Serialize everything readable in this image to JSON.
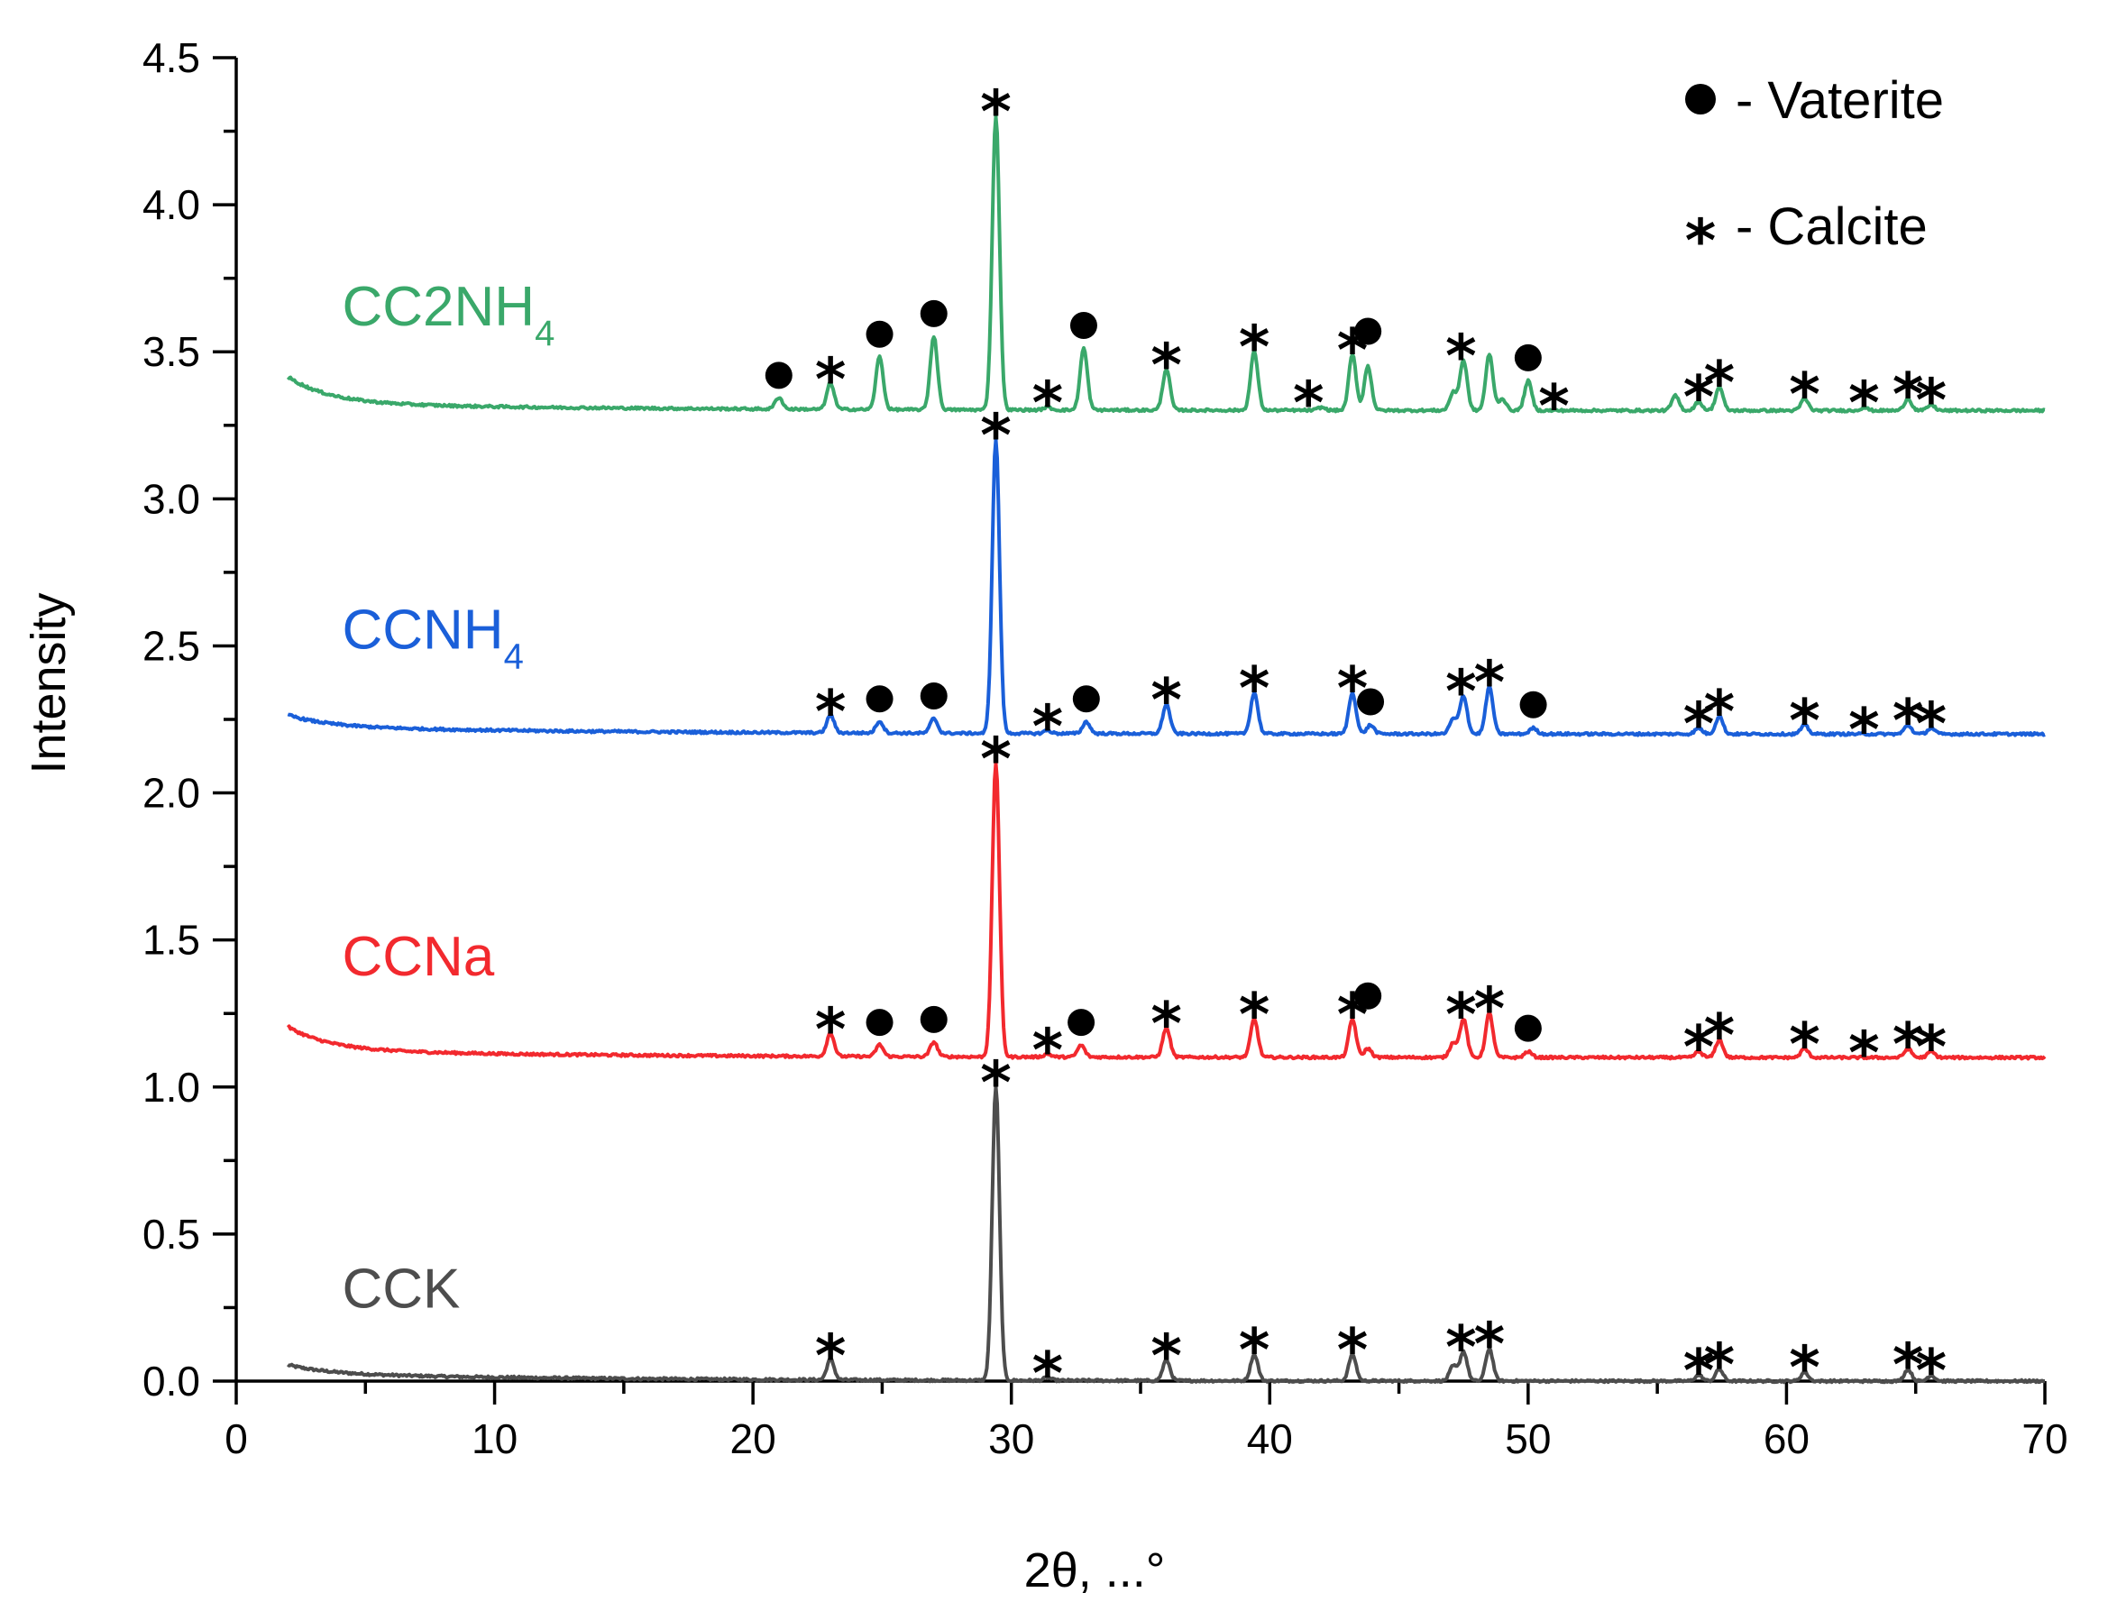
{
  "chart_data": {
    "type": "line",
    "xlabel": "2θ, ...°",
    "ylabel": "Intensity",
    "xlim": [
      0,
      70
    ],
    "ylim": [
      0,
      4.5
    ],
    "x_ticks": [
      0,
      10,
      20,
      30,
      40,
      50,
      60,
      70
    ],
    "x_tick_labels": [
      "0",
      "10",
      "20",
      "30",
      "40",
      "50",
      "60",
      "70"
    ],
    "y_ticks": [
      0.0,
      0.5,
      1.0,
      1.5,
      2.0,
      2.5,
      3.0,
      3.5,
      4.0,
      4.5
    ],
    "y_tick_labels": [
      "0.0",
      "0.5",
      "1.0",
      "1.5",
      "2.0",
      "2.5",
      "3.0",
      "3.5",
      "4.0",
      "4.5"
    ],
    "x_minor_step": 5,
    "y_minor_step": 0.25,
    "grid": false,
    "legend": {
      "placement": "top-right",
      "entries": [
        {
          "symbol": "dot",
          "label": "- Vaterite"
        },
        {
          "symbol": "star",
          "label": "- Calcite"
        }
      ]
    },
    "series": [
      {
        "name": "CCK",
        "label_main": "CCK",
        "label_sub": "",
        "color": "#4d4d4d",
        "baseline": 0.0,
        "start_level": 0.03,
        "peaks": [
          [
            23.0,
            0.07
          ],
          [
            29.4,
            1.0
          ],
          [
            31.4,
            0.01
          ],
          [
            36.0,
            0.07
          ],
          [
            39.4,
            0.09
          ],
          [
            43.2,
            0.09
          ],
          [
            47.1,
            0.05
          ],
          [
            47.5,
            0.1
          ],
          [
            48.5,
            0.11
          ],
          [
            56.6,
            0.02
          ],
          [
            57.4,
            0.04
          ],
          [
            60.7,
            0.03
          ],
          [
            64.7,
            0.04
          ],
          [
            65.6,
            0.02
          ]
        ],
        "stars": [
          23.0,
          29.4,
          31.4,
          36.0,
          39.4,
          43.2,
          47.4,
          48.5,
          56.6,
          57.4,
          60.7,
          64.7,
          65.6
        ],
        "dots": []
      },
      {
        "name": "CCNa",
        "label_main": "CCNa",
        "label_sub": "",
        "color": "#f2292e",
        "baseline": 1.1,
        "start_level": 1.18,
        "peaks": [
          [
            23.0,
            0.08
          ],
          [
            24.9,
            0.04
          ],
          [
            27.0,
            0.05
          ],
          [
            29.4,
            1.0
          ],
          [
            31.4,
            0.01
          ],
          [
            32.7,
            0.04
          ],
          [
            36.0,
            0.1
          ],
          [
            39.4,
            0.13
          ],
          [
            43.2,
            0.13
          ],
          [
            43.8,
            0.03
          ],
          [
            47.1,
            0.05
          ],
          [
            47.5,
            0.13
          ],
          [
            48.5,
            0.15
          ],
          [
            50.0,
            0.02
          ],
          [
            56.6,
            0.02
          ],
          [
            57.4,
            0.06
          ],
          [
            60.7,
            0.03
          ],
          [
            64.7,
            0.03
          ],
          [
            65.6,
            0.02
          ]
        ],
        "stars": [
          23.0,
          29.4,
          31.4,
          36.0,
          39.4,
          43.2,
          47.4,
          48.5,
          56.6,
          57.4,
          60.7,
          63.0,
          64.7,
          65.6
        ],
        "dots": [
          24.9,
          27.0,
          32.7,
          43.8,
          50.0
        ]
      },
      {
        "name": "CCNH4",
        "label_main": "CCNH",
        "label_sub": "4",
        "color": "#1a5fd9",
        "baseline": 2.2,
        "start_level": 2.24,
        "peaks": [
          [
            23.0,
            0.06
          ],
          [
            24.9,
            0.04
          ],
          [
            27.0,
            0.05
          ],
          [
            29.4,
            1.0
          ],
          [
            31.4,
            0.01
          ],
          [
            32.9,
            0.04
          ],
          [
            36.0,
            0.1
          ],
          [
            39.4,
            0.14
          ],
          [
            43.2,
            0.14
          ],
          [
            43.9,
            0.03
          ],
          [
            47.1,
            0.05
          ],
          [
            47.5,
            0.13
          ],
          [
            48.5,
            0.16
          ],
          [
            50.2,
            0.02
          ],
          [
            56.6,
            0.02
          ],
          [
            57.4,
            0.06
          ],
          [
            60.7,
            0.03
          ],
          [
            64.7,
            0.03
          ],
          [
            65.6,
            0.02
          ]
        ],
        "stars": [
          23.0,
          29.4,
          31.4,
          36.0,
          39.4,
          43.2,
          47.4,
          48.5,
          56.6,
          57.4,
          60.7,
          63.0,
          64.7,
          65.6
        ],
        "dots": [
          24.9,
          27.0,
          32.9,
          43.9,
          50.2
        ]
      },
      {
        "name": "CC2NH4",
        "label_main": "CC2NH",
        "label_sub": "4",
        "color": "#3aa86a",
        "baseline": 3.3,
        "start_level": 3.39,
        "peaks": [
          [
            21.0,
            0.04
          ],
          [
            23.0,
            0.09
          ],
          [
            24.9,
            0.18
          ],
          [
            27.0,
            0.25
          ],
          [
            29.4,
            1.0
          ],
          [
            31.4,
            0.01
          ],
          [
            32.8,
            0.21
          ],
          [
            36.0,
            0.14
          ],
          [
            39.4,
            0.2
          ],
          [
            42.0,
            0.01
          ],
          [
            43.2,
            0.19
          ],
          [
            43.8,
            0.15
          ],
          [
            47.1,
            0.06
          ],
          [
            47.5,
            0.17
          ],
          [
            48.5,
            0.19
          ],
          [
            49.0,
            0.04
          ],
          [
            50.0,
            0.1
          ],
          [
            55.7,
            0.05
          ],
          [
            56.6,
            0.03
          ],
          [
            57.4,
            0.08
          ],
          [
            60.7,
            0.04
          ],
          [
            63.0,
            0.01
          ],
          [
            64.7,
            0.04
          ],
          [
            65.6,
            0.02
          ]
        ],
        "stars": [
          23.0,
          29.4,
          31.4,
          36.0,
          39.4,
          41.5,
          43.2,
          47.4,
          51.0,
          56.6,
          57.4,
          60.7,
          63.0,
          64.7,
          65.6
        ],
        "dots": [
          21.0,
          24.9,
          27.0,
          32.8,
          43.8,
          50.0
        ]
      }
    ]
  }
}
